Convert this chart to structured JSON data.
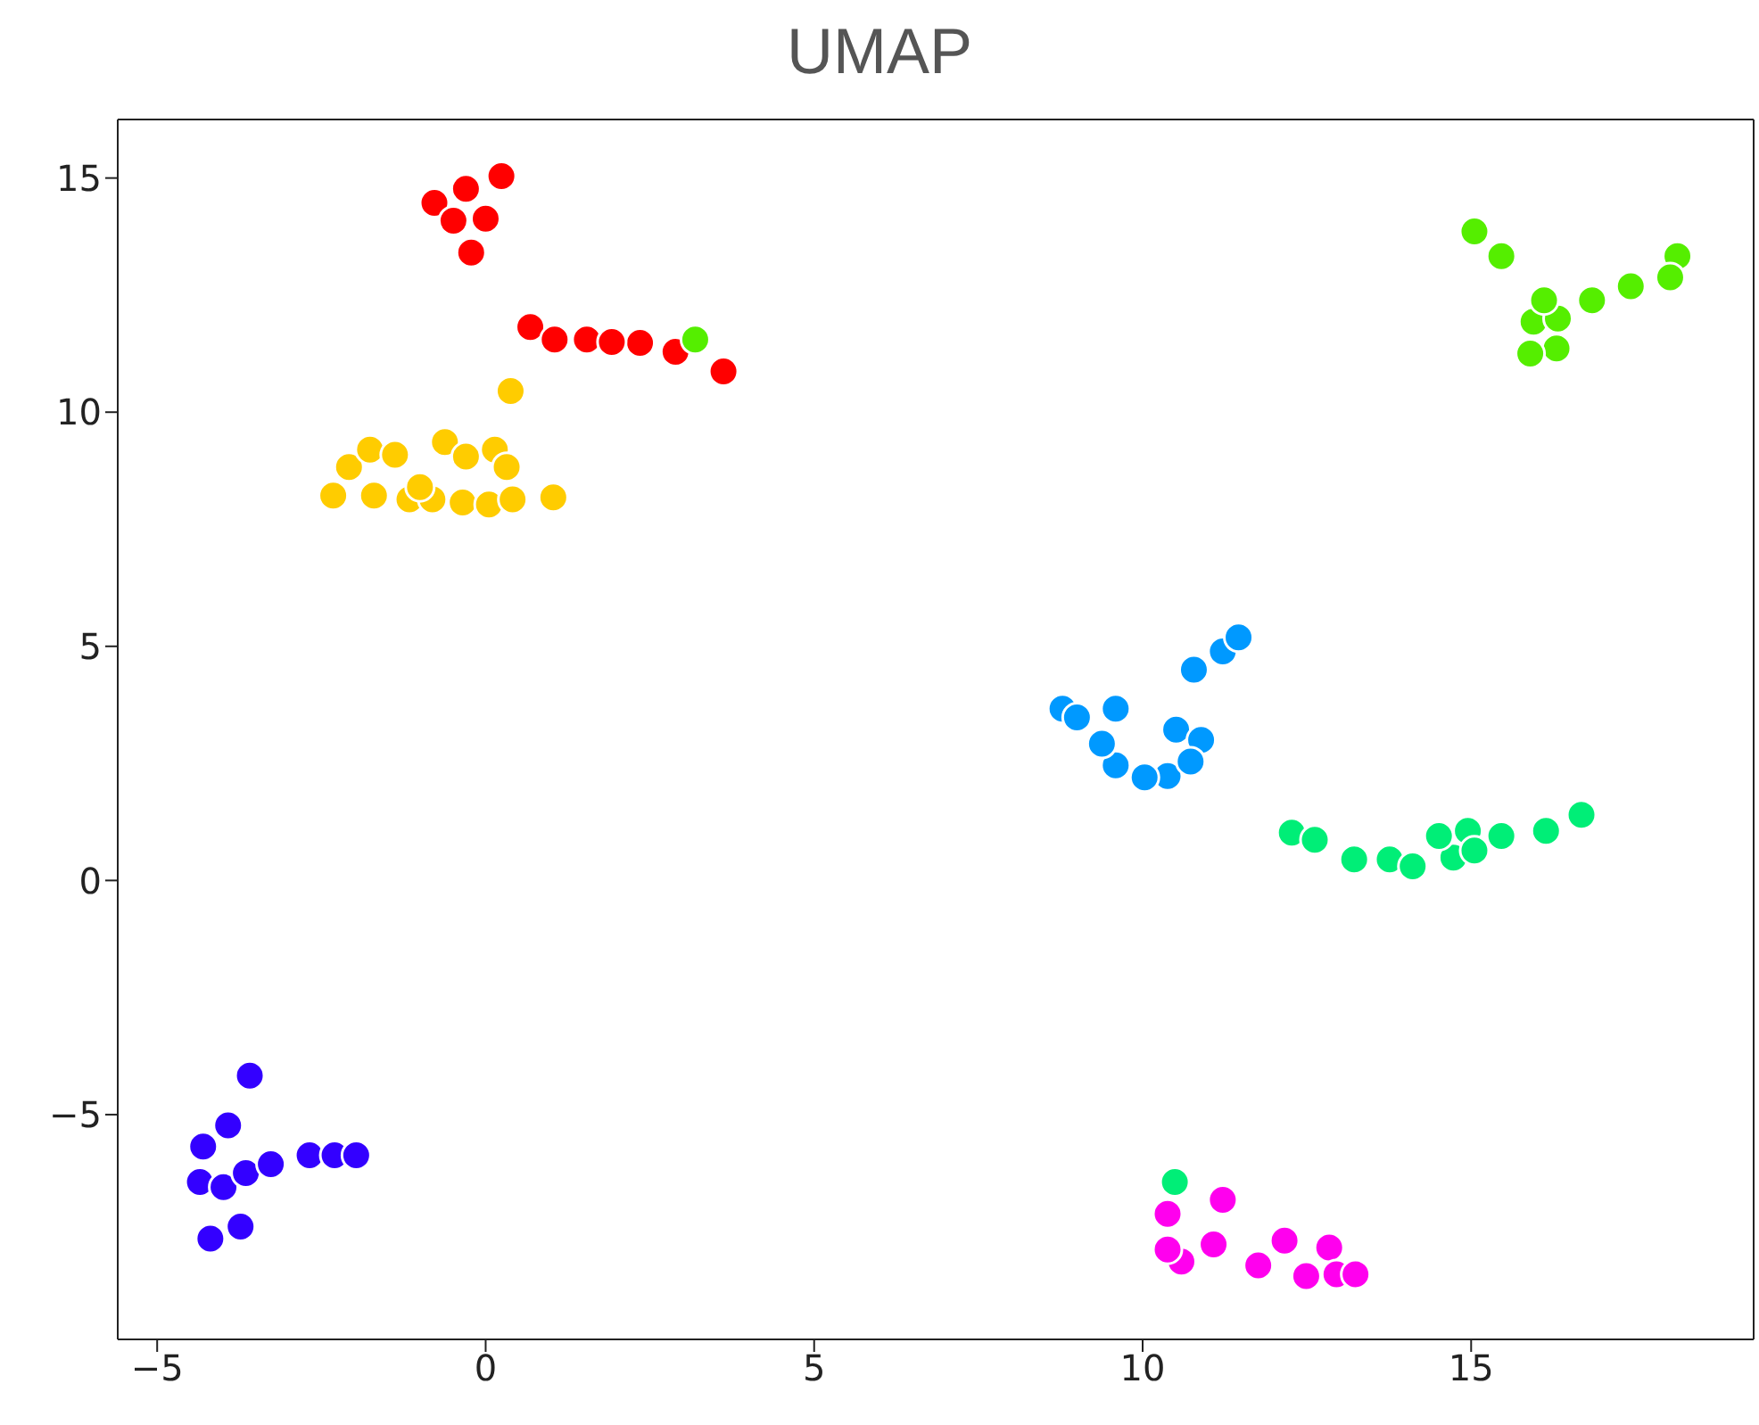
{
  "chart_data": {
    "type": "scatter",
    "title": "UMAP",
    "xlim": [
      -5.6,
      19.3
    ],
    "ylim": [
      -9.8,
      16.25
    ],
    "xticks": [
      -5,
      0,
      5,
      10,
      15
    ],
    "yticks": [
      -5,
      0,
      5,
      10,
      15
    ],
    "grid": false,
    "legend": false,
    "marker": "circle",
    "series": [
      {
        "color": "#ff0000",
        "x": [
          -0.78,
          -0.49,
          0.24,
          0,
          -0.22,
          -0.3,
          0.68,
          1.05,
          1.54,
          2.35,
          2.89,
          3.62,
          1.92
        ],
        "values": [
          14.47,
          14.09,
          15.04,
          14.13,
          13.41,
          14.77,
          11.82,
          11.55,
          11.55,
          11.48,
          11.29,
          10.87,
          11.5
        ]
      },
      {
        "color": "#ffcc00",
        "x": [
          -2.32,
          -2.08,
          -1.76,
          -1.38,
          -1.16,
          -0.62,
          -0.3,
          0.14,
          0.38,
          -0.35,
          0.05,
          0.41,
          1.03,
          -1.7,
          -0.81,
          -1.0,
          0.32
        ],
        "values": [
          8.22,
          8.83,
          9.2,
          9.09,
          8.14,
          9.36,
          9.05,
          9.2,
          10.45,
          8.07,
          8.03,
          8.14,
          8.18,
          8.22,
          8.14,
          8.4,
          8.83
        ]
      },
      {
        "color": "#55ee00",
        "x": [
          3.19,
          15.05,
          15.46,
          15.95,
          16.32,
          16.3,
          15.9,
          16.84,
          17.43,
          18.14,
          18.03,
          16.11
        ],
        "values": [
          11.55,
          13.86,
          13.33,
          11.93,
          12.0,
          11.36,
          11.25,
          12.39,
          12.69,
          13.33,
          12.88,
          12.39
        ]
      },
      {
        "color": "#0099ff",
        "x": [
          8.78,
          9.0,
          9.59,
          9.59,
          10.38,
          10.51,
          10.89,
          10.78,
          11.22,
          11.46,
          10.03,
          9.38,
          10.73
        ],
        "values": [
          3.67,
          3.48,
          3.67,
          2.46,
          2.23,
          3.22,
          3.0,
          4.5,
          4.89,
          5.19,
          2.2,
          2.92,
          2.54
        ]
      },
      {
        "color": "#00ee77",
        "x": [
          12.27,
          12.62,
          13.22,
          13.76,
          14.11,
          14.73,
          14.95,
          15.46,
          16.14,
          16.68,
          15.05,
          14.51,
          10.49
        ],
        "values": [
          1.02,
          0.87,
          0.45,
          0.45,
          0.3,
          0.49,
          1.06,
          0.95,
          1.06,
          1.4,
          0.64,
          0.95,
          -6.44
        ]
      },
      {
        "color": "#3300ff",
        "x": [
          -3.59,
          -3.92,
          -4.3,
          -4.35,
          -3.99,
          -3.65,
          -4.19,
          -3.73,
          -3.27,
          -2.68,
          -2.3,
          -1.97
        ],
        "values": [
          -4.17,
          -5.23,
          -5.68,
          -6.44,
          -6.55,
          -6.25,
          -7.65,
          -7.39,
          -6.06,
          -5.87,
          -5.87,
          -5.87
        ]
      },
      {
        "color": "#ff00ee",
        "x": [
          11.22,
          10.38,
          10.59,
          11.08,
          11.76,
          12.16,
          12.49,
          12.84,
          12.95,
          13.24,
          10.38
        ],
        "values": [
          -6.82,
          -7.12,
          -8.14,
          -7.77,
          -8.22,
          -7.69,
          -8.45,
          -7.84,
          -8.41,
          -8.41,
          -7.88
        ]
      }
    ]
  }
}
